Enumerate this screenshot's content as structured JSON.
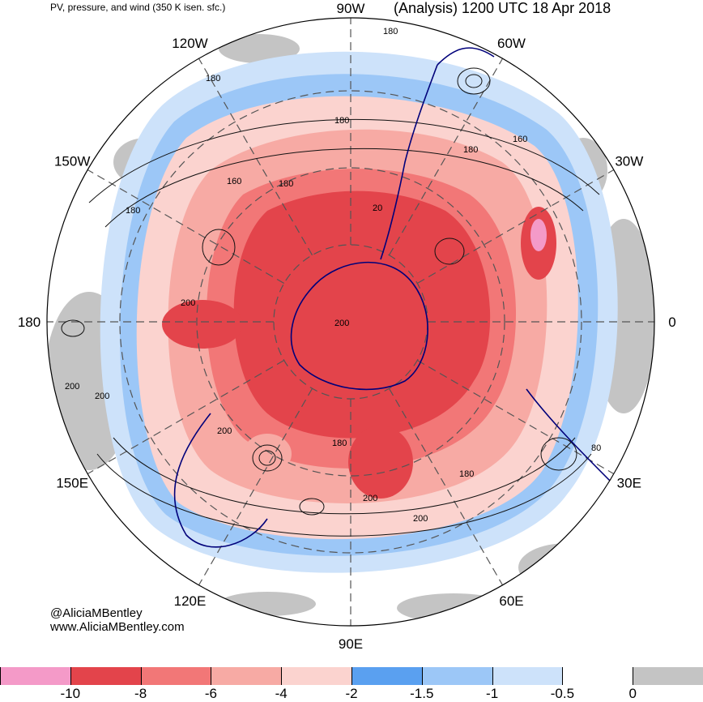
{
  "header": {
    "left_title": "PV, pressure, and wind (350 K isen. sfc.)",
    "right_title": "(Analysis) 1200 UTC 18 Apr 2018"
  },
  "longitudes": [
    {
      "label": "90W",
      "angle": 90
    },
    {
      "label": "60W",
      "angle": 60
    },
    {
      "label": "30W",
      "angle": 30
    },
    {
      "label": "0",
      "angle": 0
    },
    {
      "label": "30E",
      "angle": -30
    },
    {
      "label": "60E",
      "angle": -60
    },
    {
      "label": "90E",
      "angle": -90
    },
    {
      "label": "120E",
      "angle": -120
    },
    {
      "label": "150E",
      "angle": -150
    },
    {
      "label": "180",
      "angle": 180
    },
    {
      "label": "150W",
      "angle": 150
    },
    {
      "label": "120W",
      "angle": 120
    }
  ],
  "contour_labels": [
    "180",
    "160",
    "180",
    "180",
    "160",
    "180",
    "20",
    "180",
    "200",
    "200",
    "200",
    "200",
    "200",
    "180",
    "200",
    "180",
    "200",
    "80"
  ],
  "credits": {
    "handle": "@AliciaMBentley",
    "website": "www.AliciaMBentley.com"
  },
  "colorbar": {
    "labels": [
      "-10",
      "-8",
      "-6",
      "-4",
      "-2",
      "-1.5",
      "-1",
      "-0.5",
      "0"
    ],
    "colors": [
      "#f49ac8",
      "#e3444b",
      "#f27777",
      "#f7aaa4",
      "#fbd3cf",
      "#5aa0f0",
      "#9cc7f7",
      "#cde2fa",
      "#ffffff",
      "#c4c4c4"
    ]
  },
  "colors": {
    "strong_red": "#e3444b",
    "mid_red": "#f27777",
    "light_red": "#f7aaa4",
    "pale_red": "#fbd3cf",
    "blue": "#5aa0f0",
    "light_blue": "#9cc7f7",
    "pale_blue": "#cde2fa",
    "gray": "#c4c4c4",
    "coast": "#00007a"
  }
}
